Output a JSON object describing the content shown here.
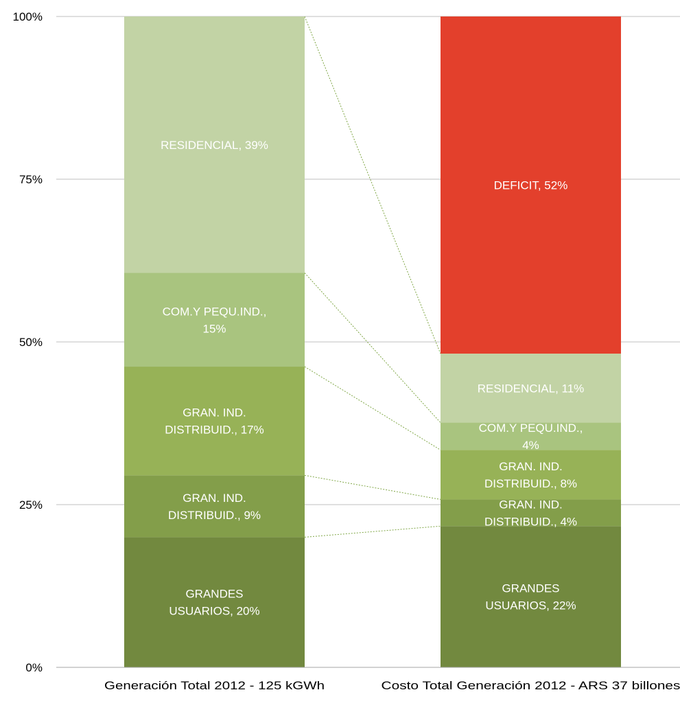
{
  "chart_data": {
    "type": "bar",
    "stacked": "percent",
    "categories": [
      "Generación Total 2012 - 125 kGWh",
      "Costo Total Generación 2012 - ARS 37 billones"
    ],
    "ylim": [
      0,
      100
    ],
    "yticks": [
      "0%",
      "25%",
      "50%",
      "75%",
      "100%"
    ],
    "grid": true,
    "colors": {
      "grandes": "#72893F",
      "distribuid_small": "#839E4A",
      "distribuid_large": "#97B257",
      "com": "#A9C47F",
      "residencial": "#C2D3A5",
      "deficit": "#E3402C",
      "connector": "#7FA645",
      "gridline": "#BFBFBF",
      "label": "#FFFFFF",
      "axis_text": "#000000"
    },
    "stacks": [
      {
        "segments": [
          {
            "key": "grandes",
            "label_lines": [
              "GRANDES",
              "USUARIOS, 20%"
            ],
            "value": 20
          },
          {
            "key": "distribuid_small",
            "label_lines": [
              "GRAN. IND.",
              "DISTRIBUID., 9%"
            ],
            "value": 9.5
          },
          {
            "key": "distribuid_large",
            "label_lines": [
              "GRAN. IND.",
              "DISTRIBUID., 17%"
            ],
            "value": 16.7
          },
          {
            "key": "com",
            "label_lines": [
              "COM.Y PEQU.IND.,",
              "15%"
            ],
            "value": 14.4
          },
          {
            "key": "residencial",
            "label_lines": [
              "RESIDENCIAL, 39%"
            ],
            "value": 39.4
          }
        ]
      },
      {
        "segments": [
          {
            "key": "grandes",
            "label_lines": [
              "GRANDES",
              "USUARIOS, 22%"
            ],
            "value": 21.7
          },
          {
            "key": "distribuid_small",
            "label_lines": [
              "GRAN. IND.",
              "DISTRIBUID., 4%"
            ],
            "value": 4.1
          },
          {
            "key": "distribuid_large",
            "label_lines": [
              "GRAN. IND.",
              "DISTRIBUID., 8%"
            ],
            "value": 7.6
          },
          {
            "key": "com",
            "label_lines": [
              "COM.Y PEQU.IND.,",
              "4%"
            ],
            "value": 4.2
          },
          {
            "key": "residencial",
            "label_lines": [
              "RESIDENCIAL, 11%"
            ],
            "value": 10.6
          },
          {
            "key": "deficit",
            "label_lines": [
              "DEFICIT, 52%"
            ],
            "value": 51.8
          }
        ]
      }
    ]
  }
}
